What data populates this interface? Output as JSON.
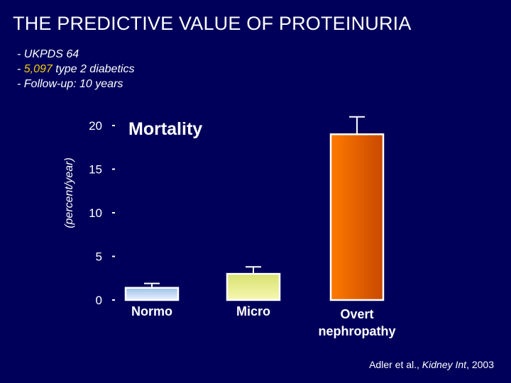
{
  "slide": {
    "title": "THE PREDICTIVE VALUE OF PROTEINURIA",
    "bullets": [
      {
        "prefix": "- UKPDS 64"
      },
      {
        "prefix": "- ",
        "highlight": "5,097",
        "suffix": " type 2 diabetics"
      },
      {
        "prefix": "- Follow-up: 10 years"
      }
    ],
    "citation": {
      "authors": "Adler et al., ",
      "journal": "Kidney Int",
      "year": ", 2003"
    }
  },
  "chart_data": {
    "type": "bar",
    "title": "Mortality",
    "ylabel": "(percent/year)",
    "xlabel": "",
    "categories": [
      "Normo",
      "Micro",
      "Overt\nnephropathy"
    ],
    "values": [
      1.4,
      3.0,
      19.0
    ],
    "error_upper": [
      1.9,
      3.8,
      21.0
    ],
    "ylim": [
      0,
      20
    ],
    "yticks": [
      0,
      5,
      10,
      15,
      20
    ],
    "colors": {
      "Normo": [
        "#9cc0e8",
        "#e8f2ff"
      ],
      "Micro": [
        "#d8e070",
        "#f6f8b0"
      ],
      "Overt\nnephropathy": [
        "#ff7a00",
        "#c84800"
      ]
    },
    "bar_border": "#ffffff",
    "axis_color": "#ffffff"
  }
}
